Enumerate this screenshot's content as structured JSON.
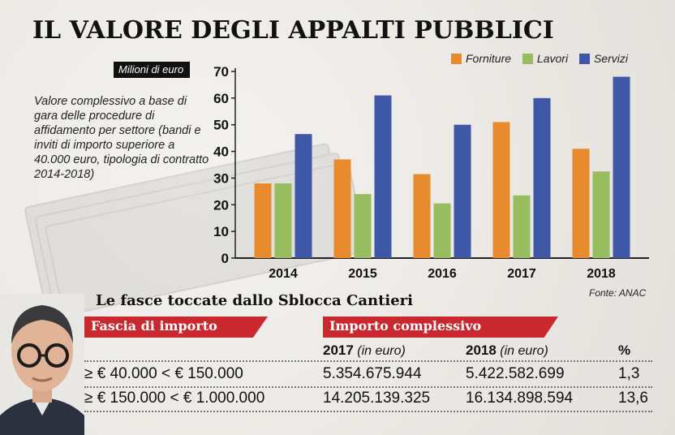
{
  "title": "IL VALORE DEGLI APPALTI PUBBLICI",
  "unit_label": "Milioni di euro",
  "description": "Valore complessivo a base di gara delle procedure di affidamento per settore (bandi e inviti di importo superiore a 40.000 euro, tipologia di contratto 2014-2018)",
  "source": "Fonte: ANAC",
  "colors": {
    "Forniture": "#e88b2f",
    "Lavori": "#98bd5e",
    "Servizi": "#3e57a6",
    "accent_red": "#c8282e"
  },
  "chart_data": {
    "type": "bar",
    "categories": [
      "2014",
      "2015",
      "2016",
      "2017",
      "2018"
    ],
    "series": [
      {
        "name": "Forniture",
        "values": [
          28,
          37,
          31.5,
          51,
          41
        ]
      },
      {
        "name": "Lavori",
        "values": [
          28,
          24,
          20.5,
          23.5,
          32.5
        ]
      },
      {
        "name": "Servizi",
        "values": [
          46.5,
          61,
          50,
          60,
          68
        ]
      }
    ],
    "ylim": [
      0,
      70
    ],
    "yticks": [
      "0",
      "10",
      "20",
      "30",
      "40",
      "50",
      "60",
      "70"
    ],
    "ylabel": "Milioni di euro",
    "legend": "top-right",
    "grid": false
  },
  "table": {
    "subtitle": "Le fasce toccate dallo Sblocca Cantieri",
    "col1_header": "Fascia di importo",
    "col2_header": "Importo complessivo",
    "year1": "2017",
    "year2": "2018",
    "unit_note": "(in euro)",
    "pct_header": "%",
    "rows": [
      {
        "band": "≥ € 40.000 < € 150.000",
        "v2017": "5.354.675.944",
        "v2018": "5.422.582.699",
        "pct": "1,3"
      },
      {
        "band": "≥ € 150.000 < € 1.000.000",
        "v2017": "14.205.139.325",
        "v2018": "16.134.898.594",
        "pct": "13,6"
      }
    ]
  }
}
